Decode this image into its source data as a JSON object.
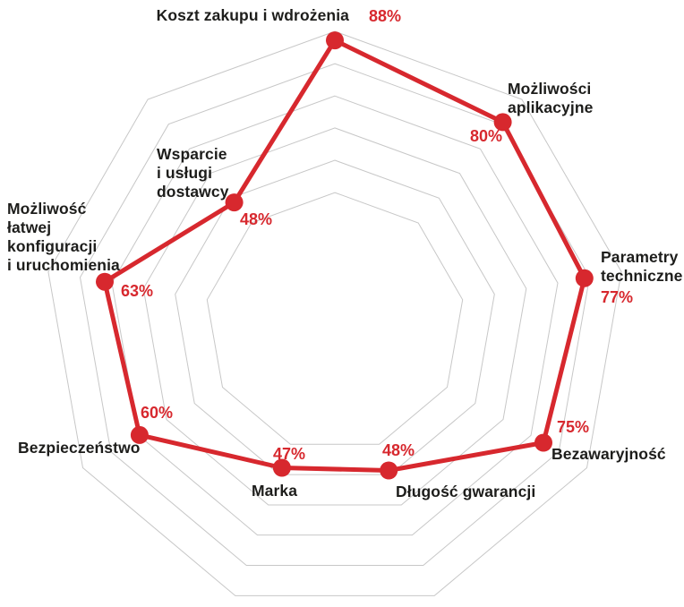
{
  "chart_data": {
    "type": "radar",
    "title": "",
    "categories": [
      "Koszt zakupu i wdrożenia",
      "Możliwości aplikacyjne",
      "Parametry techniczne",
      "Bezawaryjność",
      "Długość gwarancji",
      "Marka",
      "Bezpieczeństwo",
      "Możliwość łatwej konfiguracji i uruchomienia",
      "Wsparcie i usługi dostawcy"
    ],
    "values": [
      88,
      80,
      77,
      75,
      48,
      47,
      60,
      63,
      48
    ],
    "axes": [
      {
        "label": "Koszt zakupu i wdrożenia",
        "value": 88,
        "value_label": "88%"
      },
      {
        "label": "Możliwości\naplikacyjne",
        "value": 80,
        "value_label": "80%"
      },
      {
        "label": "Parametry\ntechniczne",
        "value": 77,
        "value_label": "77%"
      },
      {
        "label": "Bezawaryjność",
        "value": 75,
        "value_label": "75%"
      },
      {
        "label": "Długość gwarancji",
        "value": 48,
        "value_label": "48%"
      },
      {
        "label": "Marka",
        "value": 47,
        "value_label": "47%"
      },
      {
        "label": "Bezpieczeństwo",
        "value": 60,
        "value_label": "60%"
      },
      {
        "label": "Możliwość\nłatwej\nkonfiguracji\ni uruchomienia",
        "value": 63,
        "value_label": "63%"
      },
      {
        "label": "Wsparcie\ni usługi\ndostawcy",
        "value": 48,
        "value_label": "48%"
      }
    ],
    "grid": {
      "shape": "nonagon",
      "sides": 9,
      "rings": 6,
      "radial_spokes": false,
      "grid_on": true
    },
    "legend": {
      "visible": false
    },
    "colors": {
      "series_red": "#d7282e",
      "grid_gray": "#c7c7c7",
      "label_black": "#1d1d1b"
    },
    "layout": {
      "center": [
        374,
        360
      ],
      "outer_radius": 325,
      "ring_radius_frac": [
        0.446,
        0.557,
        0.668,
        0.778,
        0.889,
        1.0
      ],
      "plotted_radius_frac": [
        0.969,
        0.898,
        0.871,
        0.828,
        0.542,
        0.532,
        0.775,
        0.803,
        0.538
      ],
      "point_radius": 10,
      "line_width": 5
    }
  }
}
